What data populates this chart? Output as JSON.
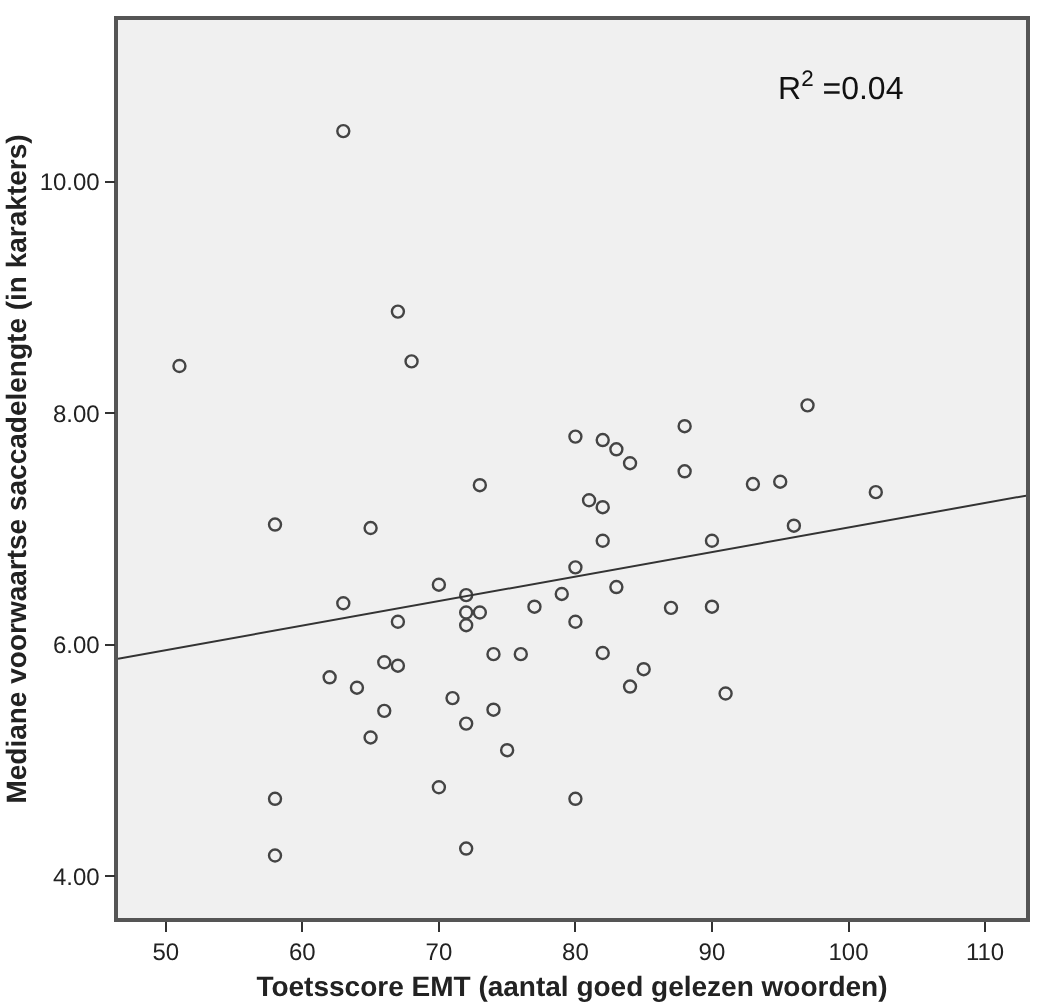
{
  "chart_data": {
    "type": "scatter",
    "xlabel": "Toetsscore EMT (aantal goed gelezen woorden)",
    "ylabel": "Mediane voorwaartse saccadelengte (in karakters)",
    "annotations": [
      "R$^{2}$ =0.04"
    ],
    "xlim": [
      46.5,
      113
    ],
    "xticks": [
      50,
      60,
      70,
      80,
      90,
      100,
      110
    ],
    "ylim": [
      3.64,
      11.4
    ],
    "yticks": [
      {
        "value": 4,
        "label": "4.00"
      },
      {
        "value": 6,
        "label": "6.00"
      },
      {
        "value": 8,
        "label": "8.00"
      },
      {
        "value": 10,
        "label": "10.00"
      }
    ],
    "grid": false,
    "series": [
      {
        "marker": "circle",
        "color": "#444444",
        "x": [
          63,
          67,
          68,
          51,
          73,
          97,
          80,
          82,
          83,
          84,
          88,
          88,
          93,
          95,
          102,
          58,
          65,
          70,
          63,
          72,
          72,
          73,
          72,
          67,
          77,
          74,
          76,
          62,
          66,
          67,
          64,
          66,
          71,
          74,
          72,
          65,
          75,
          70,
          58,
          58,
          72,
          81,
          82,
          82,
          80,
          79,
          83,
          80,
          87,
          90,
          90,
          96,
          82,
          85,
          84,
          91,
          80
        ],
        "values": [
          10.44,
          8.88,
          8.45,
          8.41,
          7.38,
          8.07,
          7.8,
          7.77,
          7.69,
          7.57,
          7.89,
          7.5,
          7.39,
          7.41,
          7.32,
          7.04,
          7.01,
          6.52,
          6.36,
          6.43,
          6.28,
          6.28,
          6.17,
          6.2,
          6.33,
          5.92,
          5.92,
          5.72,
          5.85,
          5.82,
          5.63,
          5.43,
          5.54,
          5.44,
          5.32,
          5.2,
          5.09,
          4.77,
          4.67,
          4.18,
          4.24,
          7.25,
          7.19,
          6.9,
          6.67,
          6.44,
          6.5,
          6.2,
          6.32,
          6.33,
          6.9,
          7.03,
          5.93,
          5.79,
          5.64,
          5.58,
          4.67
        ]
      },
      {
        "type": "line",
        "marker": "none",
        "line_style": "solid",
        "color": "#333333",
        "x": [
          46.5,
          113
        ],
        "values": [
          5.88,
          7.29
        ]
      }
    ]
  }
}
